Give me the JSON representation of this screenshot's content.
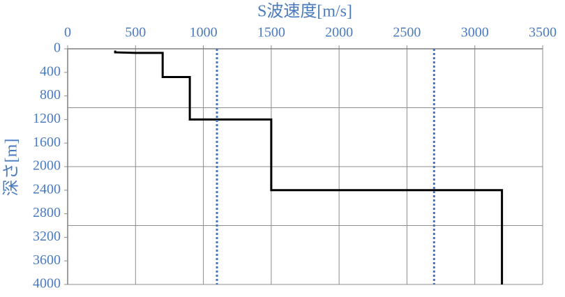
{
  "chart_data": {
    "type": "line",
    "xlabel": "S波速度[m/s]",
    "ylabel": "深さ[m]",
    "xlim": [
      0,
      3500
    ],
    "xticks": [
      0,
      500,
      1000,
      1500,
      2000,
      2500,
      3000,
      3500
    ],
    "ylim": [
      0,
      4000
    ],
    "yticks": [
      0,
      400,
      800,
      1200,
      1600,
      2000,
      2400,
      2800,
      3200,
      3600,
      4000
    ],
    "y_inverted": true,
    "x_axis_top": true,
    "xgrid": true,
    "ygrid": [
      1000,
      2000,
      3000,
      4000
    ],
    "series": [
      {
        "color": "#000000",
        "dashed": false,
        "x": [
          350,
          350,
          500,
          700,
          700,
          900,
          900,
          1500,
          1500,
          3200,
          3200
        ],
        "values": [
          30,
          60,
          70,
          70,
          480,
          480,
          1200,
          1200,
          2400,
          2400,
          4000
        ]
      },
      {
        "color": "#4472c4",
        "dashed": true,
        "x": [
          1100,
          1100
        ],
        "values": [
          0,
          4000
        ]
      },
      {
        "color": "#4472c4",
        "dashed": true,
        "x": [
          2700,
          2700
        ],
        "values": [
          0,
          4000
        ]
      }
    ]
  }
}
